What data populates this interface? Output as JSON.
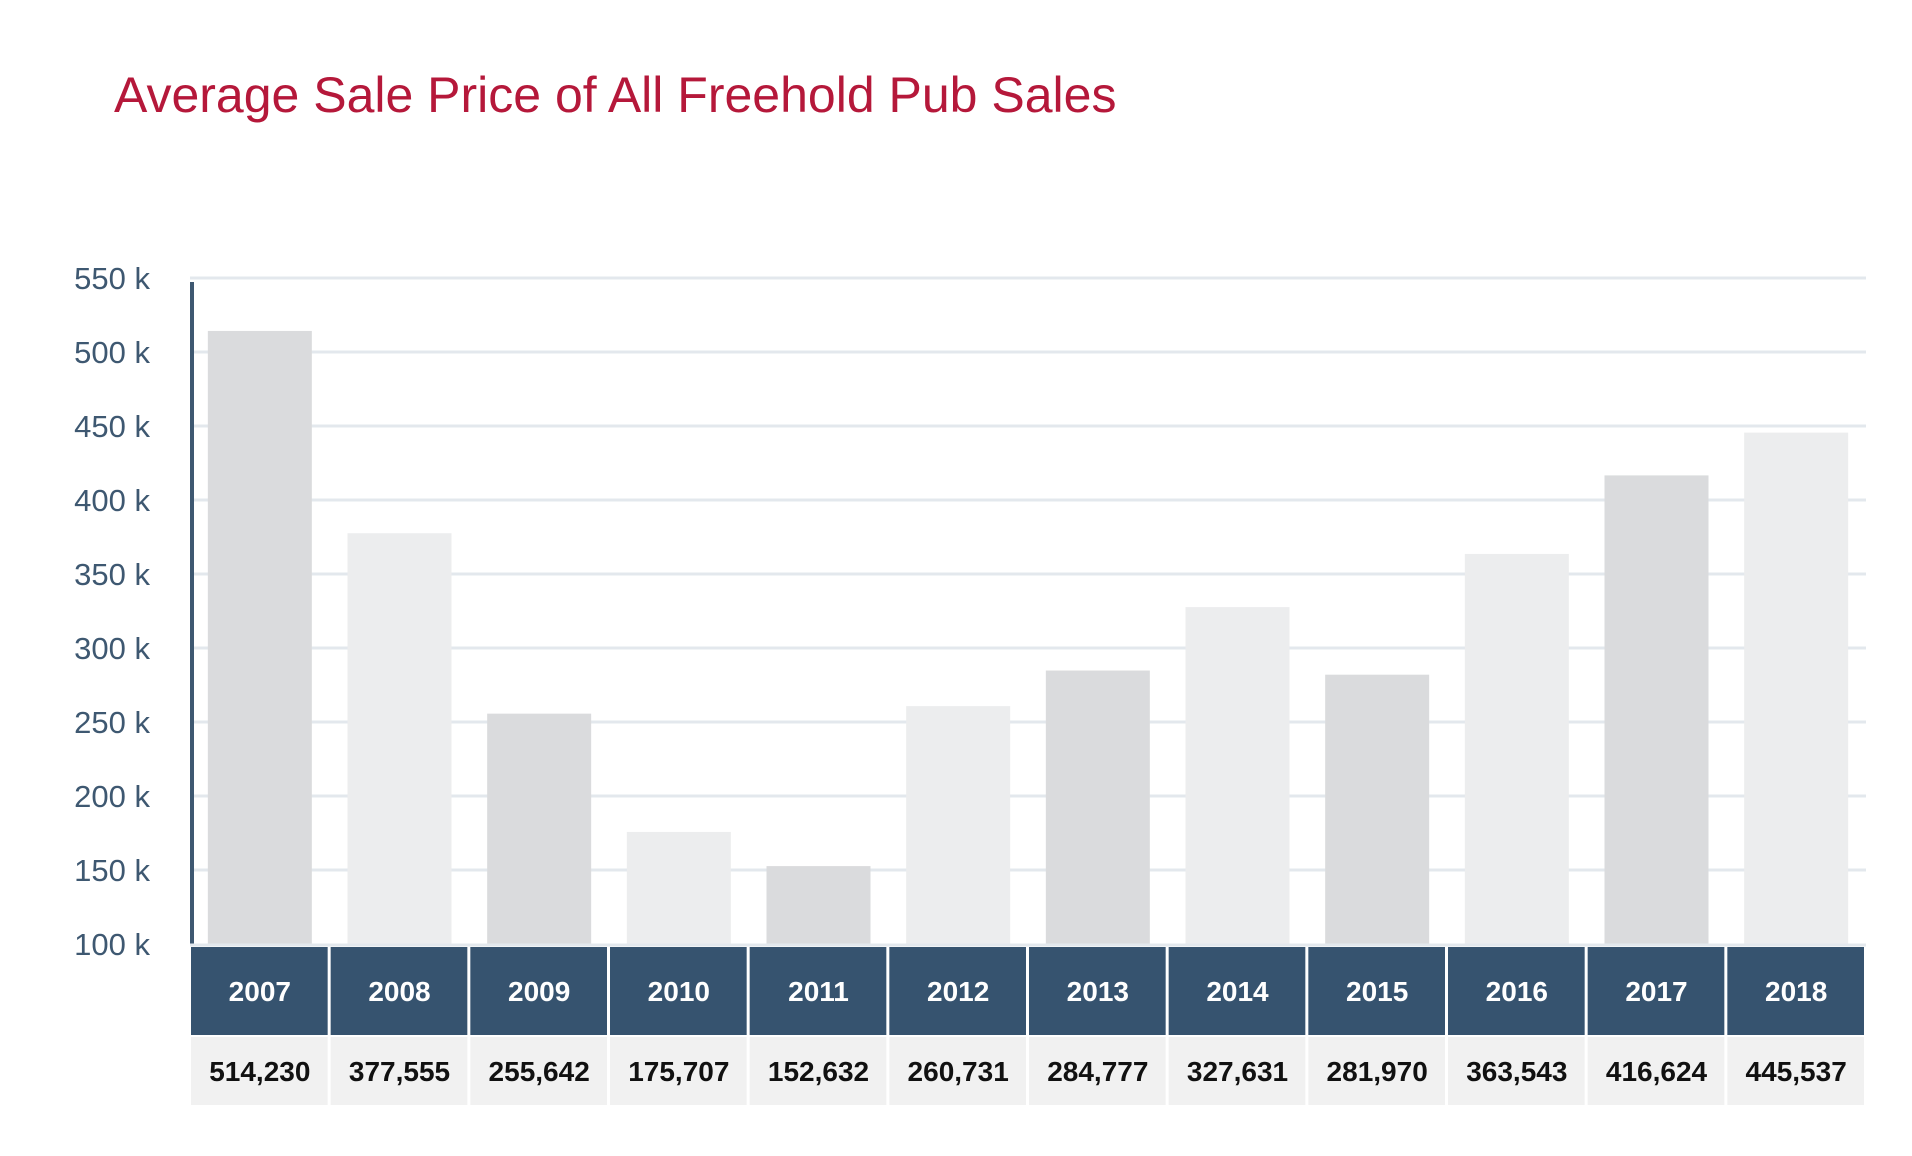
{
  "colors": {
    "title": "#b5183a",
    "axis": "#3e5871",
    "grid": "#e3e8ed",
    "bar_dark": "#dadbdd",
    "bar_light": "#ecedee",
    "header_bg": "#36536f",
    "header_text": "#ffffff",
    "value_bg": "#f1f1f1",
    "value_text": "#111111"
  },
  "chart_data": {
    "type": "bar",
    "title": "Average Sale Price of All Freehold Pub Sales",
    "xlabel": "",
    "ylabel": "",
    "ylim": [
      100000,
      550000
    ],
    "yticks": [
      100000,
      150000,
      200000,
      250000,
      300000,
      350000,
      400000,
      450000,
      500000,
      550000
    ],
    "ytick_labels": [
      "100 k",
      "150 k",
      "200 k",
      "250 k",
      "300 k",
      "350 k",
      "400 k",
      "450 k",
      "500 k",
      "550 k"
    ],
    "grid": true,
    "legend": "none",
    "categories": [
      "2007",
      "2008",
      "2009",
      "2010",
      "2011",
      "2012",
      "2013",
      "2014",
      "2015",
      "2016",
      "2017",
      "2018"
    ],
    "values": [
      514230,
      377555,
      255642,
      175707,
      152632,
      260731,
      284777,
      327631,
      281970,
      363543,
      416624,
      445537
    ],
    "value_labels": [
      "514,230",
      "377,555",
      "255,642",
      "175,707",
      "152,632",
      "260,731",
      "284,777",
      "327,631",
      "281,970",
      "363,543",
      "416,624",
      "445,537"
    ]
  }
}
